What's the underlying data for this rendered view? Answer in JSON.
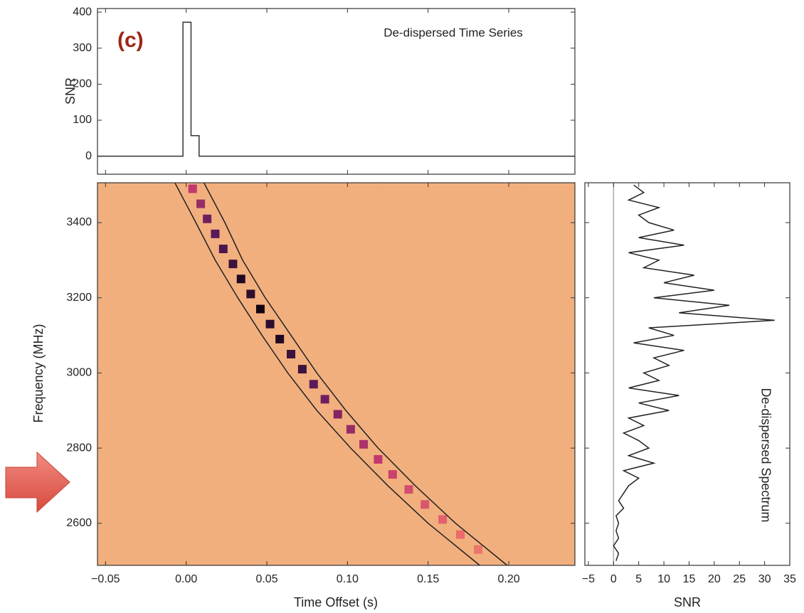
{
  "chart_data": [
    {
      "type": "line",
      "annotation": "(c)",
      "title": "De-dispersed Time Series",
      "ylabel": "SNR",
      "x": [
        -0.055,
        -0.002,
        -0.002,
        0.003,
        0.003,
        0.008,
        0.008,
        0.241
      ],
      "values": [
        0,
        0,
        372,
        372,
        57,
        57,
        0,
        0
      ],
      "color": "#333333",
      "xlim": [
        -0.055,
        0.241
      ],
      "ylim": [
        -50,
        410
      ],
      "yticks": [
        0,
        100,
        200,
        300,
        400
      ]
    },
    {
      "type": "heatmap",
      "xlabel": "Time Offset (s)",
      "ylabel": "Frequency (MHz)",
      "xlim": [
        -0.055,
        0.241
      ],
      "ylim": [
        2488,
        3506
      ],
      "xticks": [
        {
          "value": -0.05,
          "label": "−0.05"
        },
        {
          "value": 0,
          "label": "0.00"
        },
        0.05,
        {
          "value": 0.1,
          "label": "0.10"
        },
        0.15,
        {
          "value": 0.2,
          "label": "0.20"
        }
      ],
      "yticks": [
        2600,
        2800,
        3000,
        3200,
        3400
      ],
      "background": "#f2ae7c",
      "cmap": [
        "#f2a86e",
        "#ec6a6c",
        "#c0396f",
        "#5a1a5a",
        "#120512"
      ],
      "x": [
        0.004,
        0.009,
        0.013,
        0.018,
        0.023,
        0.029,
        0.034,
        0.04,
        0.046,
        0.052,
        0.058,
        0.065,
        0.072,
        0.079,
        0.086,
        0.094,
        0.102,
        0.11,
        0.119,
        0.128,
        0.138,
        0.148,
        0.159,
        0.17,
        0.181
      ],
      "y": [
        3490,
        3450,
        3410,
        3370,
        3330,
        3290,
        3250,
        3210,
        3170,
        3130,
        3090,
        3050,
        3010,
        2970,
        2930,
        2890,
        2850,
        2810,
        2770,
        2730,
        2690,
        2650,
        2610,
        2570,
        2530
      ],
      "values": [
        0.5,
        0.6,
        0.7,
        0.75,
        0.8,
        0.85,
        0.95,
        0.9,
        1.0,
        0.9,
        0.95,
        0.85,
        0.85,
        0.75,
        0.7,
        0.65,
        0.6,
        0.55,
        0.5,
        0.45,
        0.4,
        0.35,
        0.3,
        0.25,
        0.2
      ],
      "curves": [
        {
          "color": "#222222",
          "x": [
            -0.007,
            0.006,
            0.018,
            0.032,
            0.047,
            0.063,
            0.081,
            0.102,
            0.125,
            0.15,
            0.182
          ],
          "y": [
            3506,
            3400,
            3300,
            3200,
            3100,
            3000,
            2900,
            2800,
            2700,
            2600,
            2488
          ]
        },
        {
          "color": "#222222",
          "x": [
            0.011,
            0.024,
            0.035,
            0.049,
            0.065,
            0.081,
            0.099,
            0.119,
            0.142,
            0.167,
            0.199
          ],
          "y": [
            3506,
            3400,
            3300,
            3200,
            3100,
            3000,
            2900,
            2800,
            2700,
            2600,
            2488
          ]
        }
      ]
    },
    {
      "type": "spectrum",
      "title": "De-dispersed Spectrum",
      "xlabel": "SNR",
      "color": "#222222",
      "y": [
        3500,
        3480,
        3460,
        3440,
        3420,
        3400,
        3380,
        3360,
        3340,
        3320,
        3300,
        3280,
        3260,
        3240,
        3220,
        3200,
        3180,
        3160,
        3140,
        3120,
        3100,
        3080,
        3060,
        3040,
        3020,
        3000,
        2980,
        2960,
        2940,
        2920,
        2900,
        2880,
        2860,
        2840,
        2820,
        2800,
        2780,
        2760,
        2740,
        2720,
        2700,
        2680,
        2660,
        2640,
        2620,
        2600,
        2580,
        2560,
        2540,
        2520,
        2500
      ],
      "values": [
        4,
        6,
        3,
        9,
        5,
        7,
        12,
        5,
        14,
        3,
        9,
        6,
        16,
        10,
        20,
        8,
        23,
        13,
        32,
        7,
        12,
        4,
        14,
        8,
        11,
        6,
        9,
        3,
        13,
        5,
        11,
        3,
        6,
        2,
        5,
        7,
        3,
        8,
        2,
        5,
        3,
        2,
        1,
        2,
        0.5,
        1,
        0.5,
        1,
        0,
        1,
        0.5
      ],
      "xlim": [
        -5.7,
        35
      ],
      "ylim": [
        2488,
        3506
      ],
      "xticks": [
        {
          "value": -5,
          "label": "−5"
        },
        0,
        5,
        10,
        15,
        20,
        25,
        30,
        35
      ]
    }
  ]
}
